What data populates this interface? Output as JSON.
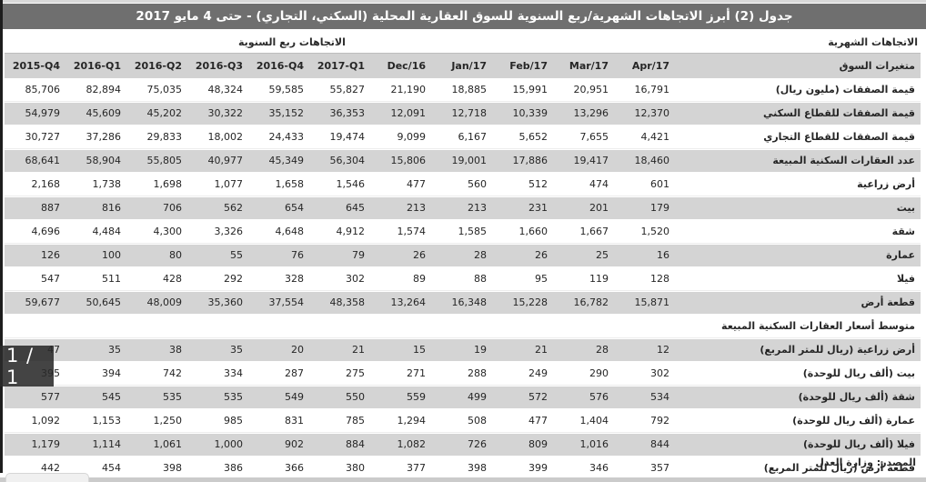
{
  "viewer": {
    "page_indicator": "1 / 1"
  },
  "colors": {
    "title_bar_bg": "#6f6f6f",
    "shaded_row_bg": "#d4d4d4",
    "header_row_bg": "#d2d2d2"
  },
  "table": {
    "title": "جدول (2) أبرز الاتجاهات الشهرية/ربع السنوية للسوق العقارية المحلية (السكني، التجاري) - حتى 4 مايو 2017",
    "quarterly_header": "الاتجاهات ربع السنوية",
    "monthly_header": "الاتجاهات الشهرية",
    "variables_header": "متغيرات السوق",
    "columns": [
      "2015-Q4",
      "2016-Q1",
      "2016-Q2",
      "2016-Q3",
      "2016-Q4",
      "2017-Q1",
      "Dec/16",
      "Jan/17",
      "Feb/17",
      "Mar/17",
      "Apr/17"
    ],
    "transactions_rows": [
      {
        "label": "قيمة الصفقات (مليون ريال)",
        "values": [
          "85,706",
          "82,894",
          "75,035",
          "48,324",
          "59,585",
          "55,827",
          "21,190",
          "18,885",
          "15,991",
          "20,951",
          "16,791"
        ]
      },
      {
        "label": "قيمة الصفقات للقطاع السكني",
        "values": [
          "54,979",
          "45,609",
          "45,202",
          "30,322",
          "35,152",
          "36,353",
          "12,091",
          "12,718",
          "10,339",
          "13,296",
          "12,370"
        ]
      },
      {
        "label": "قيمة الصفقات للقطاع التجاري",
        "values": [
          "30,727",
          "37,286",
          "29,833",
          "18,002",
          "24,433",
          "19,474",
          "9,099",
          "6,167",
          "5,652",
          "7,655",
          "4,421"
        ]
      },
      {
        "label": "عدد العقارات السكنية المبيعة",
        "values": [
          "68,641",
          "58,904",
          "55,805",
          "40,977",
          "45,349",
          "56,304",
          "15,806",
          "19,001",
          "17,886",
          "19,417",
          "18,460"
        ]
      },
      {
        "label": "أرض زراعية",
        "values": [
          "2,168",
          "1,738",
          "1,698",
          "1,077",
          "1,658",
          "1,546",
          "477",
          "560",
          "512",
          "474",
          "601"
        ]
      },
      {
        "label": "بيت",
        "values": [
          "887",
          "816",
          "706",
          "562",
          "654",
          "645",
          "213",
          "213",
          "231",
          "201",
          "179"
        ]
      },
      {
        "label": "شقة",
        "values": [
          "4,696",
          "4,484",
          "4,300",
          "3,326",
          "4,648",
          "4,912",
          "1,574",
          "1,585",
          "1,660",
          "1,667",
          "1,520"
        ]
      },
      {
        "label": "عمارة",
        "values": [
          "126",
          "100",
          "80",
          "55",
          "76",
          "79",
          "26",
          "28",
          "26",
          "25",
          "16"
        ]
      },
      {
        "label": "فيلا",
        "values": [
          "547",
          "511",
          "428",
          "292",
          "328",
          "302",
          "89",
          "88",
          "95",
          "119",
          "128"
        ]
      },
      {
        "label": "قطعة أرض",
        "values": [
          "59,677",
          "50,645",
          "48,009",
          "35,360",
          "37,554",
          "48,358",
          "13,264",
          "16,348",
          "15,228",
          "16,782",
          "15,871"
        ]
      }
    ],
    "avg_price_section_header": "متوسط أسعار العقارات السكنية المبيعة",
    "avg_price_rows": [
      {
        "label": "أرض زراعية  (ريال للمتر المربع)",
        "values": [
          "47",
          "35",
          "38",
          "35",
          "20",
          "21",
          "15",
          "19",
          "21",
          "28",
          "12"
        ]
      },
      {
        "label": "بيت  (ألف ريال للوحدة)",
        "values": [
          "395",
          "394",
          "742",
          "334",
          "287",
          "275",
          "271",
          "288",
          "249",
          "290",
          "302"
        ]
      },
      {
        "label": "شقة  (ألف ريال للوحدة)",
        "values": [
          "577",
          "545",
          "535",
          "535",
          "549",
          "550",
          "559",
          "499",
          "572",
          "576",
          "534"
        ]
      },
      {
        "label": "عمارة  (ألف ريال للوحدة)",
        "values": [
          "1,092",
          "1,153",
          "1,250",
          "985",
          "831",
          "785",
          "1,294",
          "508",
          "477",
          "1,404",
          "792"
        ]
      },
      {
        "label": "فيلا  (ألف ريال للوحدة)",
        "values": [
          "1,179",
          "1,114",
          "1,061",
          "1,000",
          "902",
          "884",
          "1,082",
          "726",
          "809",
          "1,016",
          "844"
        ]
      },
      {
        "label": "قطعة أرض  (ريال للمتر المربع)",
        "values": [
          "442",
          "454",
          "398",
          "386",
          "366",
          "380",
          "377",
          "398",
          "399",
          "346",
          "357"
        ]
      }
    ],
    "source": "المصدر: وزارة العدل"
  }
}
